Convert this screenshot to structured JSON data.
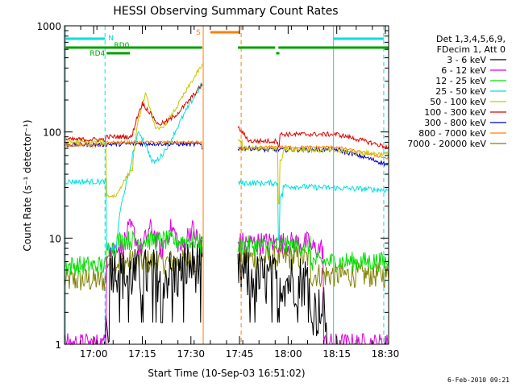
{
  "chart_data": {
    "type": "line",
    "title": "HESSI Observing Summary Count Rates",
    "xlabel": "Start Time (10-Sep-03 16:51:02)",
    "ylabel": "Count Rate (s⁻¹ detector⁻¹)",
    "yscale": "log",
    "ylim": [
      1,
      1000
    ],
    "xlim": [
      0,
      100
    ],
    "grid": false,
    "y_ticks": [
      {
        "v": 1,
        "label": "1"
      },
      {
        "v": 10,
        "label": "10"
      },
      {
        "v": 100,
        "label": "100"
      },
      {
        "v": 1000,
        "label": "1000"
      }
    ],
    "x_ticks": [
      {
        "m": 9,
        "label": "17:00"
      },
      {
        "m": 24,
        "label": "17:15"
      },
      {
        "m": 39,
        "label": "17:30"
      },
      {
        "m": 54,
        "label": "17:45"
      },
      {
        "m": 69,
        "label": "18:00"
      },
      {
        "m": 84,
        "label": "18:15"
      },
      {
        "m": 99,
        "label": "18:30"
      }
    ],
    "legend_header": [
      "Det 1,3,4,5,6,9,",
      "FDecim 1, Att 0"
    ],
    "series": [
      {
        "name": "3 - 6 keV",
        "color": "#000000"
      },
      {
        "name": "6 - 12 keV",
        "color": "#e000e0"
      },
      {
        "name": "12 - 25 keV",
        "color": "#00e000"
      },
      {
        "name": "25 - 50 keV",
        "color": "#00e0e0"
      },
      {
        "name": "50 - 100 keV",
        "color": "#c8c800"
      },
      {
        "name": "100 - 300 keV",
        "color": "#e00000"
      },
      {
        "name": "300 - 800 keV",
        "color": "#0000c8"
      },
      {
        "name": "800 - 7000 keV",
        "color": "#ff8000"
      },
      {
        "name": "7000 - 20000 keV",
        "color": "#808000"
      }
    ],
    "annotations": {
      "night_label": "N",
      "saa_label": "S",
      "rd0_label": "RD0",
      "rd4_label": "RD4"
    },
    "footer_date": "6-Feb-2010 09:21"
  }
}
